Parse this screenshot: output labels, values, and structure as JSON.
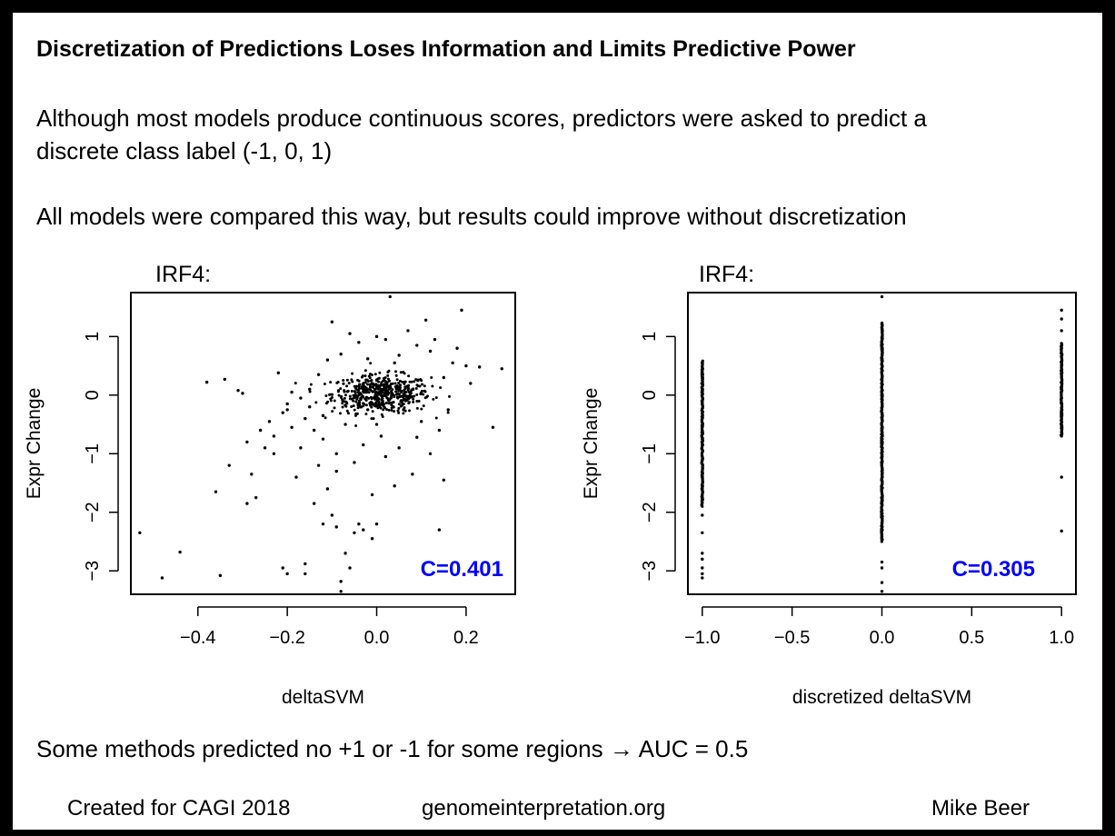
{
  "slide": {
    "title": "Discretization of Predictions Loses Information and Limits Predictive Power",
    "paragraph1_line1": "Although most models produce continuous scores, predictors were asked to predict a",
    "paragraph1_line2": "discrete class label (-1, 0, 1)",
    "paragraph2": "All models were compared this way, but results could improve without discretization",
    "bottom_note": "Some methods predicted no +1 or -1 for some regions → AUC = 0.5",
    "footer": {
      "left": "Created for CAGI 2018",
      "middle": "genomeinterpretation.org",
      "right": "Mike Beer"
    }
  },
  "chart_data": [
    {
      "type": "scatter",
      "title": "IRF4:",
      "xlabel": "deltaSVM",
      "ylabel": "Expr Change",
      "xlim": [
        -0.55,
        0.31
      ],
      "ylim": [
        -3.4,
        1.75
      ],
      "xticks": [
        -0.4,
        -0.2,
        0.0,
        0.2
      ],
      "xtick_labels": [
        "−0.4",
        "−0.2",
        "0.0",
        "0.2"
      ],
      "yticks": [
        -3,
        -2,
        -1,
        0,
        1
      ],
      "ytick_labels": [
        "−3",
        "−2",
        "−1",
        "0",
        "1"
      ],
      "annotation": "C=0.401",
      "annotation_color": "#0000ff",
      "point_color": "#000000",
      "points": [
        [
          -0.53,
          -2.35
        ],
        [
          -0.48,
          -3.12
        ],
        [
          -0.44,
          -2.68
        ],
        [
          -0.38,
          0.22
        ],
        [
          -0.36,
          -1.65
        ],
        [
          -0.35,
          -3.08
        ],
        [
          -0.34,
          0.27
        ],
        [
          -0.33,
          -1.2
        ],
        [
          -0.31,
          0.08
        ],
        [
          -0.3,
          0.03
        ],
        [
          -0.29,
          -1.85
        ],
        [
          -0.29,
          -0.8
        ],
        [
          -0.28,
          -1.35
        ],
        [
          -0.27,
          -1.75
        ],
        [
          -0.26,
          -0.6
        ],
        [
          -0.25,
          -0.9
        ],
        [
          -0.24,
          -0.45
        ],
        [
          -0.23,
          -0.7
        ],
        [
          -0.23,
          -1.0
        ],
        [
          -0.22,
          0.38
        ],
        [
          -0.21,
          -2.95
        ],
        [
          -0.21,
          -0.3
        ],
        [
          -0.2,
          -3.05
        ],
        [
          -0.2,
          -0.15
        ],
        [
          -0.19,
          -0.55
        ],
        [
          -0.18,
          -1.4
        ],
        [
          -0.17,
          -0.9
        ],
        [
          -0.16,
          -3.05
        ],
        [
          -0.16,
          -2.88
        ],
        [
          -0.15,
          -0.2
        ],
        [
          -0.14,
          -1.85
        ],
        [
          -0.14,
          -0.6
        ],
        [
          -0.13,
          -1.2
        ],
        [
          -0.12,
          -2.2
        ],
        [
          -0.12,
          -0.75
        ],
        [
          -0.11,
          -1.6
        ],
        [
          -0.1,
          -2.05
        ],
        [
          -0.1,
          1.25
        ],
        [
          -0.09,
          -2.25
        ],
        [
          -0.09,
          -1.3
        ],
        [
          -0.08,
          -3.18
        ],
        [
          -0.08,
          -3.35
        ],
        [
          -0.07,
          -2.7
        ],
        [
          -0.07,
          -0.5
        ],
        [
          -0.06,
          -2.95
        ],
        [
          -0.05,
          -1.15
        ],
        [
          -0.05,
          -2.35
        ],
        [
          -0.04,
          -2.2
        ],
        [
          -0.03,
          -2.3
        ],
        [
          -0.02,
          -0.25
        ],
        [
          -0.01,
          -2.45
        ],
        [
          -0.01,
          -1.7
        ],
        [
          0.0,
          -2.2
        ],
        [
          0.01,
          -0.7
        ],
        [
          0.02,
          -1.05
        ],
        [
          0.03,
          1.68
        ],
        [
          0.04,
          0.55
        ],
        [
          0.05,
          -0.9
        ],
        [
          0.06,
          -0.25
        ],
        [
          0.07,
          1.1
        ],
        [
          0.08,
          -1.35
        ],
        [
          0.09,
          0.85
        ],
        [
          0.1,
          -0.45
        ],
        [
          0.11,
          1.28
        ],
        [
          0.12,
          -1.0
        ],
        [
          0.13,
          0.95
        ],
        [
          0.14,
          -2.3
        ],
        [
          0.15,
          -1.45
        ],
        [
          0.16,
          -0.25
        ],
        [
          0.17,
          0.55
        ],
        [
          0.19,
          1.45
        ],
        [
          0.2,
          0.5
        ],
        [
          0.21,
          0.2
        ],
        [
          0.23,
          0.48
        ],
        [
          0.26,
          -0.55
        ],
        [
          0.28,
          0.45
        ],
        [
          -0.06,
          1.05
        ],
        [
          -0.04,
          0.9
        ],
        [
          0.0,
          1.0
        ],
        [
          0.02,
          0.95
        ],
        [
          -0.11,
          0.6
        ],
        [
          -0.13,
          0.35
        ],
        [
          -0.15,
          0.1
        ],
        [
          -0.17,
          -0.05
        ],
        [
          -0.19,
          0.05
        ],
        [
          -0.2,
          -0.25
        ],
        [
          0.15,
          0.3
        ],
        [
          0.14,
          -0.6
        ],
        [
          0.18,
          0.8
        ],
        [
          0.12,
          0.75
        ],
        [
          -0.02,
          0.62
        ],
        [
          -0.08,
          0.7
        ],
        [
          0.05,
          0.68
        ],
        [
          0.09,
          -0.72
        ],
        [
          -0.12,
          -0.35
        ],
        [
          -0.16,
          -0.4
        ],
        [
          0.0,
          -0.5
        ],
        [
          0.04,
          -1.55
        ],
        [
          -0.03,
          -0.85
        ],
        [
          -0.09,
          -1.0
        ]
      ]
    },
    {
      "type": "scatter",
      "title": "IRF4:",
      "xlabel": "discretized deltaSVM",
      "ylabel": "Expr Change",
      "xlim": [
        -1.08,
        1.08
      ],
      "ylim": [
        -3.4,
        1.75
      ],
      "xticks": [
        -1.0,
        -0.5,
        0.0,
        0.5,
        1.0
      ],
      "xtick_labels": [
        "−1.0",
        "−0.5",
        "0.0",
        "0.5",
        "1.0"
      ],
      "yticks": [
        -3,
        -2,
        -1,
        0,
        1
      ],
      "ytick_labels": [
        "−3",
        "−2",
        "−1",
        "0",
        "1"
      ],
      "annotation": "C=0.305",
      "annotation_color": "#0000ff",
      "point_color": "#000000",
      "columns": [
        {
          "x": -1.0,
          "dense_range": [
            -1.9,
            0.6
          ],
          "extra": [
            -2.05,
            -2.35,
            -2.7,
            -2.8,
            -2.95,
            -3.05,
            -3.12
          ]
        },
        {
          "x": 0.0,
          "dense_range": [
            -2.5,
            1.25
          ],
          "extra": [
            -2.85,
            -2.95,
            -3.2,
            -3.35,
            1.68
          ]
        },
        {
          "x": 1.0,
          "dense_range": [
            -0.7,
            0.9
          ],
          "extra": [
            1.1,
            1.3,
            1.45,
            -1.4,
            -2.32
          ]
        }
      ]
    }
  ]
}
